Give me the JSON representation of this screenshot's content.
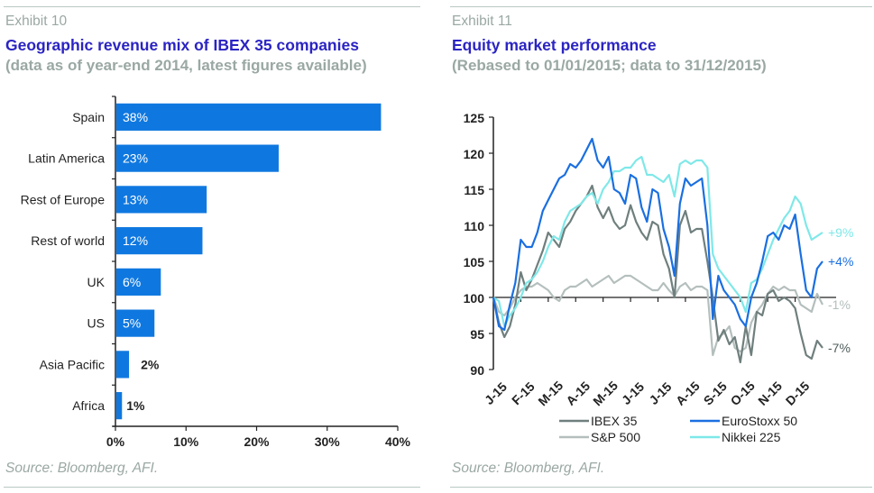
{
  "left": {
    "exhibit": "Exhibit 10",
    "title": "Geographic revenue mix of IBEX 35 companies",
    "subtitle": "(data as of year-end 2014, latest figures available)",
    "source": "Source: Bloomberg, AFI."
  },
  "right": {
    "exhibit": "Exhibit 11",
    "title": "Equity market performance",
    "subtitle": "(Rebased to 01/01/2015; data to 31/12/2015)",
    "source": "Source: Bloomberg, AFI."
  },
  "chart_data": [
    {
      "type": "bar",
      "orientation": "horizontal",
      "title": "Geographic revenue mix of IBEX 35 companies",
      "subtitle": "(data as of year-end 2014, latest figures available)",
      "categories": [
        "Spain",
        "Latin America",
        "Rest of Europe",
        "Rest of world",
        "UK",
        "US",
        "Asia Pacific",
        "Africa"
      ],
      "values": [
        37.5,
        23,
        12.8,
        12.2,
        6.3,
        5.4,
        1.8,
        0.8
      ],
      "data_labels": [
        "38%",
        "23%",
        "13%",
        "12%",
        "6%",
        "5%",
        "2%",
        "1%"
      ],
      "xlim": [
        0,
        40
      ],
      "xticks": [
        "0%",
        "10%",
        "20%",
        "30%",
        "40%"
      ],
      "bar_color": "#0f78e0",
      "grid": false
    },
    {
      "type": "line",
      "title": "Equity market performance",
      "subtitle": "(Rebased to 01/01/2015; data to 31/12/2015)",
      "ylim": [
        90,
        125
      ],
      "yticks": [
        "125",
        "120",
        "115",
        "110",
        "105",
        "100",
        "95",
        "90"
      ],
      "xticks": [
        "J-15",
        "F-15",
        "M-15",
        "A-15",
        "M-15",
        "J-15",
        "J-15",
        "A-15",
        "S-15",
        "O-15",
        "N-15",
        "D-15"
      ],
      "reference_line": 100,
      "legend_position": "bottom",
      "x_points_per_year": 60,
      "series": [
        {
          "name": "IBEX 35",
          "color": "#6f7f7d",
          "end_label": "-7%",
          "values": [
            100,
            96.5,
            94.5,
            96,
            99,
            103.5,
            101,
            102.5,
            104.5,
            106.5,
            109,
            108,
            107,
            109.5,
            110.5,
            112,
            113,
            114,
            115.5,
            112.5,
            111,
            112.5,
            110.5,
            109.5,
            110,
            112.8,
            110.5,
            109,
            108,
            110.5,
            110,
            106,
            104,
            100,
            110,
            112,
            109,
            109.5,
            109.5,
            105,
            100,
            94,
            95.5,
            93.5,
            94.5,
            91,
            96,
            92,
            98,
            97.5,
            100.5,
            101,
            99.5,
            100,
            99.5,
            98.5,
            95,
            92,
            91.5,
            94,
            93
          ]
        },
        {
          "name": "EuroStoxx 50",
          "color": "#1a6fe0",
          "end_label": "+4%",
          "values": [
            100,
            96,
            95.5,
            99,
            102,
            108,
            107,
            107,
            109,
            112,
            113.5,
            115,
            116.5,
            117,
            118.5,
            118,
            119,
            120.5,
            122,
            119,
            118,
            119.5,
            115,
            114.5,
            113,
            117,
            116.5,
            112.5,
            110.5,
            115,
            114.5,
            109.5,
            107,
            103,
            113,
            116.5,
            115.5,
            116,
            116.5,
            110,
            97,
            103,
            101,
            100,
            99,
            97,
            96,
            100,
            102,
            105,
            108.5,
            109,
            108,
            110,
            109.5,
            111.5,
            106,
            101,
            100,
            104,
            105
          ]
        },
        {
          "name": "S&P 500",
          "color": "#b4bfbd",
          "end_label": "-1%",
          "values": [
            100,
            98,
            97.5,
            98.5,
            100,
            101,
            101.5,
            101.5,
            102,
            101.5,
            101,
            100,
            99.5,
            101,
            101.5,
            101.5,
            102,
            102.5,
            101.5,
            102,
            102.5,
            103,
            102,
            102.5,
            103,
            103,
            102.5,
            102,
            101.5,
            101,
            101,
            102,
            101,
            100.2,
            101.5,
            102,
            101,
            101.5,
            101.5,
            101,
            92,
            94.5,
            95,
            96,
            93,
            92.5,
            93,
            96.5,
            98,
            99,
            100.5,
            101.5,
            101,
            101.5,
            101,
            101,
            99,
            98.5,
            98,
            100.5,
            99
          ]
        },
        {
          "name": "Nikkei 225",
          "color": "#7fe8e8",
          "end_label": "+9%",
          "values": [
            100,
            99.5,
            96,
            97.5,
            98.5,
            100,
            102,
            102.5,
            103.5,
            105,
            107,
            108.5,
            108,
            110.5,
            112,
            112.5,
            113,
            114,
            114.5,
            113,
            115,
            116,
            117.5,
            117.5,
            118,
            118,
            119,
            119.5,
            117,
            117,
            116.5,
            116,
            117,
            114,
            118.5,
            119,
            118.5,
            119,
            119,
            118,
            106,
            104,
            103,
            102,
            101,
            100,
            98,
            102,
            102.5,
            104,
            106,
            108,
            109.5,
            111,
            112,
            114,
            113,
            110,
            108,
            108.5,
            109
          ]
        }
      ]
    }
  ]
}
